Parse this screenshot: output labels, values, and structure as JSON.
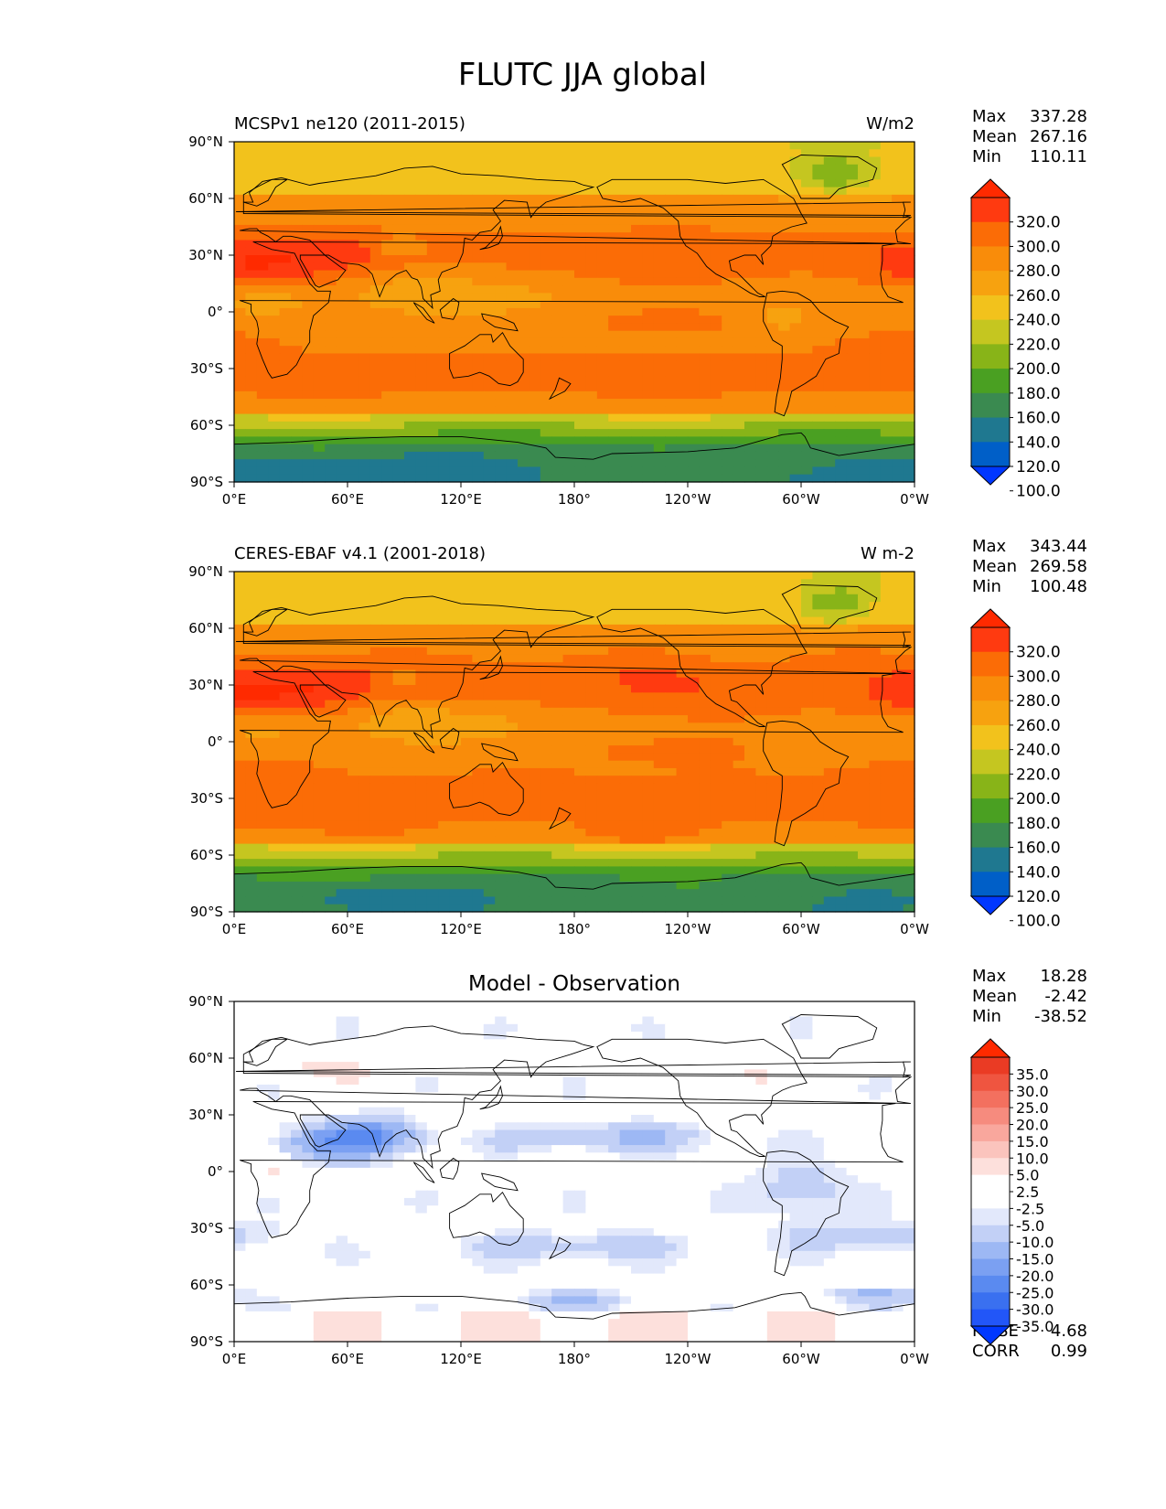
{
  "figure": {
    "title": "FLUTC JJA global"
  },
  "stats_labels": {
    "max": "Max",
    "mean": "Mean",
    "min": "Min",
    "rmse": "RMSE",
    "corr": "CORR"
  },
  "colors": {
    "abs_levels": [
      "#0037ff",
      "#005fc8",
      "#1f7890",
      "#3a8a50",
      "#4aa022",
      "#88b418",
      "#c5c620",
      "#f2c21c",
      "#f7a20f",
      "#f98c0a",
      "#fb6c06",
      "#ff3a10",
      "#ff2a00"
    ],
    "diff_levels": [
      "#0038ff",
      "#2256f8",
      "#3a70f0",
      "#5a8af0",
      "#7ba0f2",
      "#9db8f4",
      "#c2d0f6",
      "#e2e8fb",
      "#ffffff",
      "#ffffff",
      "#fde0dc",
      "#fbc4bd",
      "#f9a79d",
      "#f68b7e",
      "#f3705f",
      "#ef5540",
      "#ea3b24",
      "#ff2a00"
    ],
    "land_outline": "#000000"
  },
  "chart_data": [
    {
      "type": "heatmap",
      "title_left": "MCSPv1 ne120 (2011-2015)",
      "title_right": "W/m2",
      "x_ticklabels": [
        "0°E",
        "60°E",
        "120°E",
        "180°",
        "120°W",
        "60°W",
        "0°W"
      ],
      "y_ticklabels": [
        "90°N",
        "60°N",
        "30°N",
        "0°",
        "30°S",
        "60°S",
        "90°S"
      ],
      "stats": {
        "max": "337.28",
        "mean": "267.16",
        "min": "110.11"
      },
      "colorbar_labels": [
        "320.0",
        "300.0",
        "280.0",
        "260.0",
        "240.0",
        "220.0",
        "200.0",
        "180.0",
        "160.0",
        "140.0",
        "120.0",
        "100.0"
      ],
      "levels": [
        100,
        120,
        140,
        160,
        180,
        200,
        220,
        240,
        260,
        280,
        300,
        320
      ],
      "units": "W/m2"
    },
    {
      "type": "heatmap",
      "title_left": "CERES-EBAF v4.1 (2001-2018)",
      "title_right": "W m-2",
      "x_ticklabels": [
        "0°E",
        "60°E",
        "120°E",
        "180°",
        "120°W",
        "60°W",
        "0°W"
      ],
      "y_ticklabels": [
        "90°N",
        "60°N",
        "30°N",
        "0°",
        "30°S",
        "60°S",
        "90°S"
      ],
      "stats": {
        "max": "343.44",
        "mean": "269.58",
        "min": "100.48"
      },
      "colorbar_labels": [
        "320.0",
        "300.0",
        "280.0",
        "260.0",
        "240.0",
        "220.0",
        "200.0",
        "180.0",
        "160.0",
        "140.0",
        "120.0",
        "100.0"
      ],
      "levels": [
        100,
        120,
        140,
        160,
        180,
        200,
        220,
        240,
        260,
        280,
        300,
        320
      ],
      "units": "W m-2"
    },
    {
      "type": "heatmap",
      "title_center": "Model - Observation",
      "x_ticklabels": [
        "0°E",
        "60°E",
        "120°E",
        "180°",
        "120°W",
        "60°W",
        "0°W"
      ],
      "y_ticklabels": [
        "90°N",
        "60°N",
        "30°N",
        "0°",
        "30°S",
        "60°S",
        "90°S"
      ],
      "stats": {
        "max": "18.28",
        "mean": "-2.42",
        "min": "-38.52",
        "rmse": "4.68",
        "corr": "0.99"
      },
      "colorbar_labels": [
        "35.0",
        "30.0",
        "25.0",
        "20.0",
        "15.0",
        "10.0",
        "5.0",
        "2.5",
        "-2.5",
        "-5.0",
        "-10.0",
        "-15.0",
        "-20.0",
        "-25.0",
        "-30.0",
        "-35.0"
      ],
      "levels": [
        -35,
        -30,
        -25,
        -20,
        -15,
        -10,
        -5,
        -2.5,
        2.5,
        5,
        10,
        15,
        20,
        25,
        30,
        35
      ]
    }
  ]
}
